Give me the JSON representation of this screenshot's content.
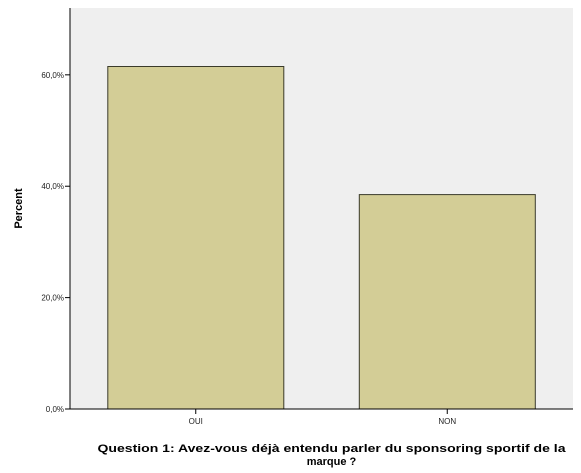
{
  "chart_data": {
    "type": "bar",
    "categories": [
      "OUI",
      "NON"
    ],
    "values": [
      61.5,
      38.5
    ],
    "xlabel": "Question 1: Avez-vous déjà entendu parler du sponsoring sportif de la marque ?",
    "xlabel_lines": [
      "Question 1: Avez-vous déjà entendu parler du sponsoring sportif de la",
      "marque ?"
    ],
    "ylabel": "Percent",
    "ylim": [
      0,
      72
    ],
    "yticks": [
      0,
      20,
      40,
      60
    ],
    "ytick_labels": [
      "0,0%",
      "20,0%",
      "40,0%",
      "60,0%"
    ],
    "grid": false,
    "legend": "none",
    "colors": {
      "plot_background": "#efefef",
      "bar_fill": "#d3cd96",
      "bar_stroke": "#3a3a2a",
      "axis": "#000000"
    }
  }
}
